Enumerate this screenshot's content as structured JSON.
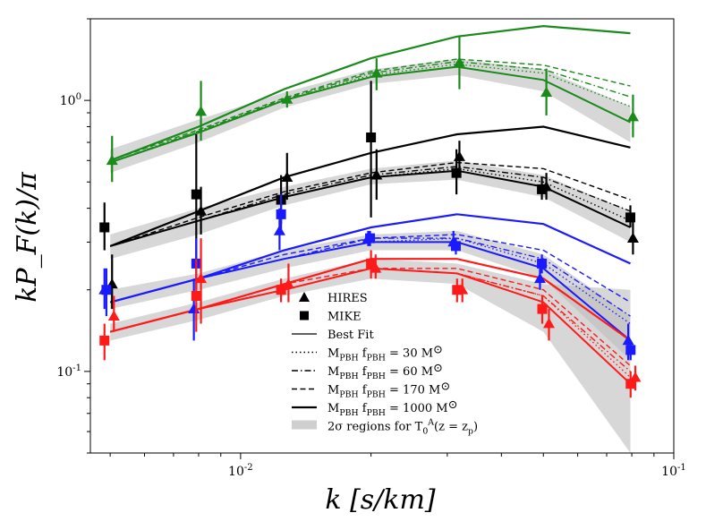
{
  "chart_data": {
    "type": "line",
    "title": "",
    "xlabel": "k [s/km]",
    "ylabel": "kP_F(k)/π",
    "xscale": "log",
    "yscale": "log",
    "xlim": [
      0.0045,
      0.1
    ],
    "ylim": [
      0.05,
      2.0
    ],
    "x_ticks": [
      {
        "value": 0.01,
        "label": "10^-2"
      },
      {
        "value": 0.1,
        "label": "10^-1"
      }
    ],
    "y_ticks": [
      {
        "value": 0.1,
        "label": "10^-1"
      },
      {
        "value": 1.0,
        "label": "10^0"
      }
    ],
    "grid": false,
    "legend_position": "lower-center",
    "legend": [
      {
        "label": "HIRES",
        "style": "triangle-marker",
        "color": "#000000"
      },
      {
        "label": "MIKE",
        "style": "square-marker",
        "color": "#000000"
      },
      {
        "label": "Best Fit",
        "style": "solid-thin",
        "color": "#000000"
      },
      {
        "label": "M_PBH f_PBH = 30 M_⊙",
        "style": "dotted",
        "color": "#000000"
      },
      {
        "label": "M_PBH f_PBH = 60 M_⊙",
        "style": "dashdot",
        "color": "#000000"
      },
      {
        "label": "M_PBH f_PBH = 170 M_⊙",
        "style": "dashed",
        "color": "#000000"
      },
      {
        "label": "M_PBH f_PBH = 1000 M_⊙",
        "style": "solid-thick",
        "color": "#000000"
      },
      {
        "label": "2σ regions for T_0^A(z = z_p)",
        "style": "band",
        "color": "#bbbbbb"
      }
    ],
    "model_x": [
      0.005,
      0.008,
      0.0126,
      0.02,
      0.0316,
      0.05,
      0.0794
    ],
    "groups": [
      {
        "color": "#1a8a1a",
        "best_fit": [
          0.59,
          0.76,
          1.0,
          1.22,
          1.33,
          1.19,
          0.83
        ],
        "m30": [
          0.59,
          0.77,
          1.0,
          1.24,
          1.36,
          1.26,
          0.95
        ],
        "m60": [
          0.59,
          0.77,
          1.01,
          1.26,
          1.39,
          1.3,
          1.03
        ],
        "m170": [
          0.6,
          0.78,
          1.02,
          1.28,
          1.42,
          1.35,
          1.13
        ],
        "m1000": [
          0.6,
          0.8,
          1.1,
          1.43,
          1.72,
          1.88,
          1.77
        ],
        "band_low": [
          0.54,
          0.7,
          0.94,
          1.15,
          1.24,
          1.08,
          0.7
        ],
        "band_high": [
          0.66,
          0.85,
          1.07,
          1.3,
          1.42,
          1.3,
          0.95
        ],
        "hires": {
          "x": [
            0.00505,
            0.0081,
            0.0128,
            0.0206,
            0.032,
            0.0508,
            0.0805
          ],
          "y": [
            0.6,
            0.91,
            1.01,
            1.26,
            1.38,
            1.07,
            0.87
          ],
          "yerr_low": [
            0.1,
            0.2,
            0.07,
            0.17,
            0.28,
            0.19,
            0.14
          ],
          "yerr_high": [
            0.14,
            0.27,
            0.07,
            0.17,
            0.34,
            0.24,
            0.18
          ]
        },
        "mike": {
          "x": [],
          "y": [],
          "yerr_low": [],
          "yerr_high": []
        }
      },
      {
        "color": "#000000",
        "best_fit": [
          0.29,
          0.36,
          0.44,
          0.52,
          0.55,
          0.48,
          0.34
        ],
        "m30": [
          0.29,
          0.36,
          0.44,
          0.52,
          0.56,
          0.5,
          0.36
        ],
        "m60": [
          0.29,
          0.36,
          0.45,
          0.53,
          0.57,
          0.52,
          0.39
        ],
        "m170": [
          0.29,
          0.37,
          0.46,
          0.54,
          0.59,
          0.56,
          0.43
        ],
        "m1000": [
          0.29,
          0.39,
          0.52,
          0.64,
          0.75,
          0.8,
          0.67
        ],
        "band_low": [
          0.26,
          0.32,
          0.41,
          0.49,
          0.51,
          0.44,
          0.3
        ],
        "band_high": [
          0.32,
          0.4,
          0.48,
          0.56,
          0.6,
          0.53,
          0.39
        ],
        "hires": {
          "x": [
            0.00505,
            0.0081,
            0.0128,
            0.0206,
            0.032,
            0.0508,
            0.0805
          ],
          "y": [
            0.21,
            0.39,
            0.52,
            0.53,
            0.62,
            0.48,
            0.31
          ],
          "yerr_low": [
            0.04,
            0.07,
            0.09,
            0.1,
            0.08,
            0.05,
            0.04
          ],
          "yerr_high": [
            0.06,
            0.09,
            0.12,
            0.13,
            0.09,
            0.06,
            0.05
          ]
        },
        "mike": {
          "x": [
            0.00485,
            0.0079,
            0.0124,
            0.02,
            0.0315,
            0.0496,
            0.0794
          ],
          "y": [
            0.34,
            0.45,
            0.43,
            0.73,
            0.54,
            0.47,
            0.37
          ],
          "yerr_low": [
            0.06,
            0.2,
            0.08,
            0.36,
            0.09,
            0.04,
            0.03
          ],
          "yerr_high": [
            0.08,
            0.3,
            0.1,
            0.45,
            0.12,
            0.05,
            0.04
          ]
        }
      },
      {
        "color": "#1a1aff",
        "best_fit": [
          0.18,
          0.22,
          0.26,
          0.3,
          0.3,
          0.24,
          0.13
        ],
        "m30": [
          0.18,
          0.22,
          0.26,
          0.3,
          0.31,
          0.25,
          0.15
        ],
        "m60": [
          0.18,
          0.22,
          0.26,
          0.31,
          0.31,
          0.26,
          0.16
        ],
        "m170": [
          0.18,
          0.22,
          0.27,
          0.31,
          0.32,
          0.28,
          0.18
        ],
        "m1000": [
          0.18,
          0.22,
          0.28,
          0.34,
          0.38,
          0.35,
          0.25
        ],
        "band_low": [
          0.17,
          0.2,
          0.24,
          0.28,
          0.28,
          0.22,
          0.11
        ],
        "band_high": [
          0.2,
          0.23,
          0.28,
          0.32,
          0.33,
          0.27,
          0.16
        ],
        "hires": {
          "x": [
            0.00485,
            0.0078,
            0.0123,
            0.0197,
            0.031,
            0.0491,
            0.0785
          ],
          "y": [
            0.2,
            0.17,
            0.33,
            0.31,
            0.3,
            0.22,
            0.13
          ],
          "yerr_low": [
            0.03,
            0.04,
            0.05,
            0.02,
            0.02,
            0.02,
            0.02
          ],
          "yerr_high": [
            0.04,
            0.05,
            0.07,
            0.02,
            0.03,
            0.02,
            0.02
          ]
        },
        "mike": {
          "x": [
            0.0049,
            0.0079,
            0.0124,
            0.0199,
            0.0314,
            0.0496,
            0.0795
          ],
          "y": [
            0.2,
            0.25,
            0.38,
            0.31,
            0.29,
            0.25,
            0.12
          ],
          "yerr_low": [
            0.04,
            0.05,
            0.06,
            0.02,
            0.02,
            0.02,
            0.01
          ],
          "yerr_high": [
            0.04,
            0.06,
            0.07,
            0.02,
            0.02,
            0.02,
            0.01
          ]
        }
      },
      {
        "color": "#ff1a1a",
        "best_fit": [
          0.14,
          0.17,
          0.2,
          0.24,
          0.23,
          0.18,
          0.09
        ],
        "m30": [
          0.14,
          0.17,
          0.2,
          0.24,
          0.23,
          0.19,
          0.095
        ],
        "m60": [
          0.14,
          0.17,
          0.2,
          0.24,
          0.23,
          0.19,
          0.1
        ],
        "m170": [
          0.14,
          0.17,
          0.21,
          0.24,
          0.24,
          0.2,
          0.105
        ],
        "m1000": [
          0.14,
          0.17,
          0.21,
          0.26,
          0.26,
          0.22,
          0.13
        ],
        "band_low": [
          0.13,
          0.155,
          0.19,
          0.22,
          0.21,
          0.14,
          0.05
        ],
        "band_high": [
          0.15,
          0.18,
          0.22,
          0.26,
          0.25,
          0.21,
          0.2
        ],
        "hires": {
          "x": [
            0.0051,
            0.0081,
            0.0129,
            0.0205,
            0.0325,
            0.0515,
            0.0815
          ],
          "y": [
            0.16,
            0.22,
            0.21,
            0.24,
            0.2,
            0.15,
            0.095
          ],
          "yerr_low": [
            0.02,
            0.07,
            0.03,
            0.02,
            0.02,
            0.02,
            0.01
          ],
          "yerr_high": [
            0.03,
            0.09,
            0.04,
            0.03,
            0.02,
            0.02,
            0.01
          ]
        },
        "mike": {
          "x": [
            0.00485,
            0.0079,
            0.0124,
            0.02,
            0.0316,
            0.0497,
            0.0795
          ],
          "y": [
            0.13,
            0.19,
            0.2,
            0.25,
            0.2,
            0.17,
            0.09
          ],
          "yerr_low": [
            0.02,
            0.05,
            0.02,
            0.03,
            0.02,
            0.02,
            0.01
          ],
          "yerr_high": [
            0.02,
            0.07,
            0.02,
            0.03,
            0.02,
            0.02,
            0.01
          ]
        }
      }
    ]
  }
}
